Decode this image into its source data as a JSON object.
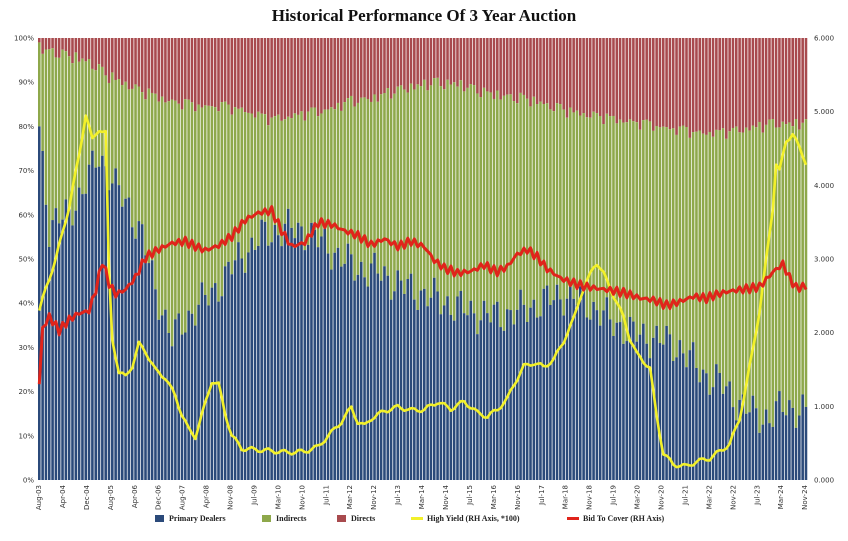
{
  "chart_data": {
    "type": "bar",
    "title": "Historical Performance Of 3 Year Auction",
    "left_axis": {
      "min": 0,
      "max": 100,
      "ticks": [
        "0%",
        "10%",
        "20%",
        "30%",
        "40%",
        "50%",
        "60%",
        "70%",
        "80%",
        "90%",
        "100%"
      ]
    },
    "right_axis": {
      "min": 0,
      "max": 6,
      "ticks": [
        "0.000",
        "1.000",
        "2.000",
        "3.000",
        "4.000",
        "5.000",
        "6.000"
      ]
    },
    "x_tick_labels": [
      "Aug-03",
      "Apr-04",
      "Dec-04",
      "Aug-05",
      "Apr-06",
      "Dec-06",
      "Aug-07",
      "Apr-08",
      "Nov-08",
      "Jul-09",
      "Mar-10",
      "Nov-10",
      "Jul-11",
      "Mar-12",
      "Nov-12",
      "Jul-13",
      "Mar-14",
      "Nov-14",
      "Jul-15",
      "Mar-16",
      "Nov-16",
      "Jul-17",
      "Mar-18",
      "Nov-18",
      "Jul-19",
      "Mar-20",
      "Nov-20",
      "Jul-21",
      "Mar-22",
      "Nov-22",
      "Jul-23",
      "Mar-24",
      "Nov-24"
    ],
    "bar_count": 232,
    "stacked_bar_series": [
      {
        "name": "Primary Dealers",
        "color": "#2b4a7a",
        "anchors_pct": [
          [
            0,
            80
          ],
          [
            3,
            57
          ],
          [
            8,
            60
          ],
          [
            13,
            65
          ],
          [
            18,
            74
          ],
          [
            23,
            66
          ],
          [
            27,
            62
          ],
          [
            31,
            55
          ],
          [
            35,
            43
          ],
          [
            40,
            32
          ],
          [
            46,
            38
          ],
          [
            53,
            43
          ],
          [
            60,
            50
          ],
          [
            67,
            55
          ],
          [
            74,
            57
          ],
          [
            81,
            56
          ],
          [
            88,
            52
          ],
          [
            95,
            48
          ],
          [
            102,
            47
          ],
          [
            109,
            44
          ],
          [
            116,
            42
          ],
          [
            123,
            40
          ],
          [
            130,
            38
          ],
          [
            137,
            37
          ],
          [
            144,
            38
          ],
          [
            151,
            40
          ],
          [
            158,
            42
          ],
          [
            165,
            40
          ],
          [
            172,
            36
          ],
          [
            179,
            33
          ],
          [
            186,
            32
          ],
          [
            193,
            30
          ],
          [
            200,
            24
          ],
          [
            205,
            22
          ],
          [
            210,
            18
          ],
          [
            215,
            15
          ],
          [
            220,
            14
          ],
          [
            225,
            17
          ],
          [
            231,
            15
          ]
        ]
      },
      {
        "name": "Indirects",
        "color": "#8ea84b"
      },
      {
        "name": "Directs",
        "color": "#a84a4e",
        "anchors_pct": [
          [
            0,
            1
          ],
          [
            5,
            2
          ],
          [
            10,
            3
          ],
          [
            15,
            4
          ],
          [
            20,
            7
          ],
          [
            26,
            9
          ],
          [
            32,
            11
          ],
          [
            40,
            13
          ],
          [
            48,
            14
          ],
          [
            55,
            14
          ],
          [
            62,
            15
          ],
          [
            70,
            17
          ],
          [
            78,
            16
          ],
          [
            86,
            15
          ],
          [
            94,
            13
          ],
          [
            102,
            12
          ],
          [
            110,
            10
          ],
          [
            118,
            9
          ],
          [
            126,
            9
          ],
          [
            134,
            11
          ],
          [
            142,
            12
          ],
          [
            150,
            13
          ],
          [
            158,
            15
          ],
          [
            166,
            16
          ],
          [
            174,
            17
          ],
          [
            182,
            18
          ],
          [
            190,
            19
          ],
          [
            198,
            20
          ],
          [
            206,
            20
          ],
          [
            214,
            19
          ],
          [
            222,
            18
          ],
          [
            231,
            18
          ]
        ]
      }
    ],
    "line_series": [
      {
        "name": "High Yield (RH Axis, *100)",
        "color": "#f2f02a",
        "anchors": [
          [
            0,
            2.3
          ],
          [
            2,
            2.6
          ],
          [
            5,
            3.0
          ],
          [
            9,
            3.7
          ],
          [
            12,
            4.4
          ],
          [
            14,
            4.95
          ],
          [
            16,
            4.6
          ],
          [
            18,
            4.75
          ],
          [
            20,
            4.7
          ],
          [
            21,
            2.8
          ],
          [
            22,
            1.9
          ],
          [
            24,
            1.45
          ],
          [
            26,
            1.4
          ],
          [
            28,
            1.55
          ],
          [
            30,
            1.85
          ],
          [
            32,
            1.75
          ],
          [
            35,
            1.5
          ],
          [
            38,
            1.4
          ],
          [
            41,
            1.15
          ],
          [
            43,
            0.9
          ],
          [
            45,
            0.7
          ],
          [
            47,
            0.6
          ],
          [
            49,
            0.9
          ],
          [
            52,
            1.35
          ],
          [
            54,
            1.3
          ],
          [
            56,
            0.9
          ],
          [
            58,
            0.6
          ],
          [
            61,
            0.42
          ],
          [
            65,
            0.4
          ],
          [
            70,
            0.38
          ],
          [
            75,
            0.36
          ],
          [
            80,
            0.38
          ],
          [
            84,
            0.45
          ],
          [
            88,
            0.65
          ],
          [
            91,
            0.8
          ],
          [
            94,
            1.0
          ],
          [
            96,
            0.8
          ],
          [
            98,
            0.75
          ],
          [
            100,
            0.85
          ],
          [
            104,
            0.95
          ],
          [
            108,
            1.0
          ],
          [
            112,
            0.95
          ],
          [
            116,
            0.95
          ],
          [
            120,
            1.05
          ],
          [
            124,
            0.95
          ],
          [
            128,
            1.05
          ],
          [
            132,
            0.9
          ],
          [
            135,
            0.85
          ],
          [
            138,
            0.95
          ],
          [
            141,
            1.1
          ],
          [
            143,
            1.3
          ],
          [
            146,
            1.55
          ],
          [
            149,
            1.6
          ],
          [
            152,
            1.55
          ],
          [
            155,
            1.65
          ],
          [
            158,
            1.9
          ],
          [
            161,
            2.2
          ],
          [
            163,
            2.5
          ],
          [
            165,
            2.7
          ],
          [
            167,
            2.9
          ],
          [
            168,
            2.95
          ],
          [
            170,
            2.8
          ],
          [
            172,
            2.6
          ],
          [
            174,
            2.4
          ],
          [
            176,
            2.2
          ],
          [
            178,
            1.9
          ],
          [
            180,
            1.7
          ],
          [
            182,
            1.6
          ],
          [
            184,
            1.5
          ],
          [
            186,
            0.85
          ],
          [
            188,
            0.35
          ],
          [
            191,
            0.2
          ],
          [
            195,
            0.18
          ],
          [
            198,
            0.25
          ],
          [
            202,
            0.3
          ],
          [
            205,
            0.4
          ],
          [
            208,
            0.5
          ],
          [
            211,
            0.85
          ],
          [
            213,
            1.3
          ],
          [
            215,
            1.8
          ],
          [
            217,
            2.3
          ],
          [
            219,
            3.0
          ],
          [
            221,
            3.7
          ],
          [
            222,
            4.3
          ],
          [
            223,
            4.2
          ],
          [
            225,
            4.6
          ],
          [
            227,
            4.7
          ],
          [
            229,
            4.5
          ],
          [
            231,
            4.3
          ]
        ]
      },
      {
        "name": "Bid To Cover (RH Axis)",
        "color": "#e0241b",
        "anchors": [
          [
            0,
            1.3
          ],
          [
            1,
            2.05
          ],
          [
            3,
            2.2
          ],
          [
            6,
            2.0
          ],
          [
            9,
            2.15
          ],
          [
            12,
            2.25
          ],
          [
            15,
            2.3
          ],
          [
            17,
            2.6
          ],
          [
            19,
            3.0
          ],
          [
            21,
            2.7
          ],
          [
            23,
            2.55
          ],
          [
            26,
            2.6
          ],
          [
            29,
            2.75
          ],
          [
            32,
            3.0
          ],
          [
            36,
            3.1
          ],
          [
            40,
            3.2
          ],
          [
            44,
            3.25
          ],
          [
            47,
            3.2
          ],
          [
            50,
            3.15
          ],
          [
            54,
            3.2
          ],
          [
            58,
            3.3
          ],
          [
            62,
            3.5
          ],
          [
            66,
            3.6
          ],
          [
            70,
            3.65
          ],
          [
            73,
            3.4
          ],
          [
            76,
            3.2
          ],
          [
            80,
            3.25
          ],
          [
            84,
            3.5
          ],
          [
            88,
            3.45
          ],
          [
            92,
            3.35
          ],
          [
            96,
            3.3
          ],
          [
            100,
            3.2
          ],
          [
            104,
            3.3
          ],
          [
            108,
            3.2
          ],
          [
            112,
            3.25
          ],
          [
            116,
            3.15
          ],
          [
            119,
            2.95
          ],
          [
            122,
            2.85
          ],
          [
            126,
            2.8
          ],
          [
            130,
            2.85
          ],
          [
            134,
            2.95
          ],
          [
            138,
            2.85
          ],
          [
            141,
            2.9
          ],
          [
            144,
            3.05
          ],
          [
            147,
            3.1
          ],
          [
            150,
            3.0
          ],
          [
            153,
            2.85
          ],
          [
            157,
            2.75
          ],
          [
            161,
            2.7
          ],
          [
            165,
            2.65
          ],
          [
            169,
            2.6
          ],
          [
            173,
            2.55
          ],
          [
            177,
            2.5
          ],
          [
            181,
            2.45
          ],
          [
            185,
            2.45
          ],
          [
            189,
            2.4
          ],
          [
            193,
            2.45
          ],
          [
            197,
            2.5
          ],
          [
            201,
            2.45
          ],
          [
            205,
            2.5
          ],
          [
            209,
            2.55
          ],
          [
            213,
            2.6
          ],
          [
            217,
            2.65
          ],
          [
            221,
            2.85
          ],
          [
            224,
            2.95
          ],
          [
            226,
            2.75
          ],
          [
            228,
            2.6
          ],
          [
            231,
            2.6
          ]
        ]
      }
    ],
    "legend": [
      {
        "label": "Primary Dealers",
        "color": "#2b4a7a",
        "kind": "box"
      },
      {
        "label": "Indirects",
        "color": "#8ea84b",
        "kind": "box"
      },
      {
        "label": "Directs",
        "color": "#a84a4e",
        "kind": "box"
      },
      {
        "label": "High Yield (RH Axis, *100)",
        "color": "#f2f02a",
        "kind": "line"
      },
      {
        "label": "Bid To Cover (RH Axis)",
        "color": "#e0241b",
        "kind": "line"
      }
    ],
    "legend_placement": "bottom",
    "grid": false
  }
}
